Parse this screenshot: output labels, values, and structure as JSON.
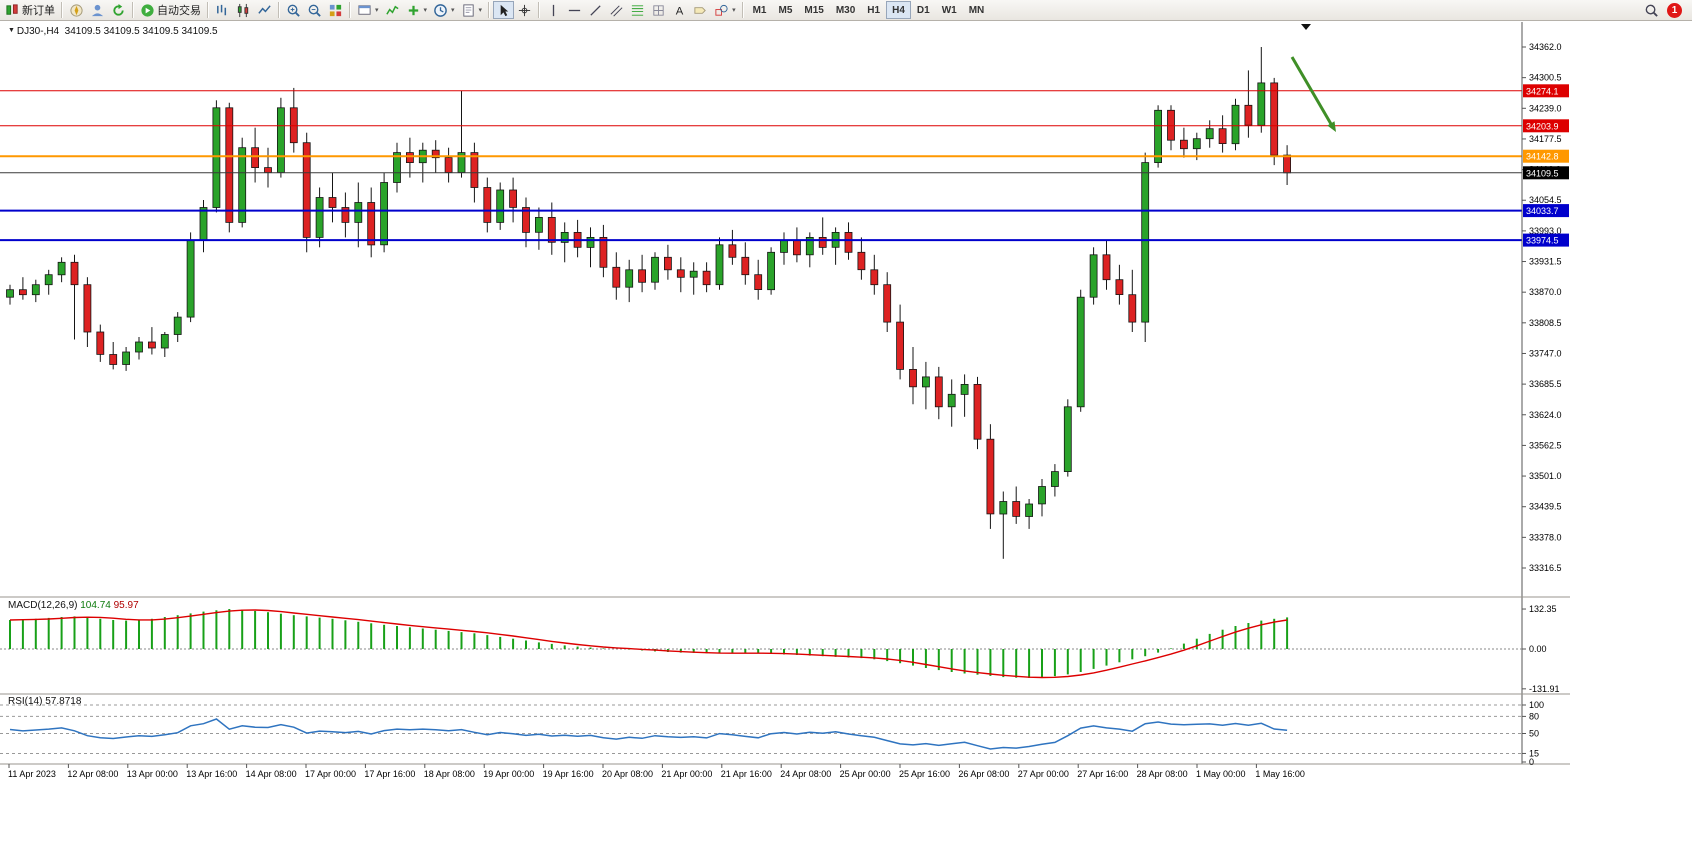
{
  "toolbar": {
    "buttons": [
      {
        "name": "new-order-button",
        "icon": "order-icon",
        "label": "新订单",
        "group_end": true
      },
      {
        "name": "marketwatch-button",
        "icon": "compass-icon"
      },
      {
        "name": "data-window-button",
        "icon": "user-icon"
      },
      {
        "name": "refresh-button",
        "icon": "refresh-icon",
        "group_end": true
      },
      {
        "name": "auto-trading-button",
        "icon": "play-icon",
        "label": "自动交易",
        "group_end": true
      },
      {
        "name": "bar-chart-button",
        "icon": "bar-chart-icon"
      },
      {
        "name": "candlestick-button",
        "icon": "candlestick-icon"
      },
      {
        "name": "line-chart-button",
        "icon": "line-chart-icon",
        "group_end": true
      },
      {
        "name": "zoom-in-button",
        "icon": "zoom-in-icon"
      },
      {
        "name": "zoom-out-button",
        "icon": "zoom-out-icon"
      },
      {
        "name": "tile-windows-button",
        "icon": "tile-windows-icon",
        "group_end": true
      },
      {
        "name": "arrange-charts-button",
        "icon": "arrange-icon",
        "dropdown": true
      },
      {
        "name": "indicators-button",
        "icon": "indicators-icon"
      },
      {
        "name": "add-indicator-button",
        "icon": "plus-icon",
        "dropdown": true
      },
      {
        "name": "periods-button",
        "icon": "clock-icon",
        "dropdown": true
      },
      {
        "name": "templates-button",
        "icon": "template-icon",
        "dropdown": true,
        "group_end": true
      },
      {
        "name": "cursor-button",
        "icon": "cursor-icon",
        "active": true
      },
      {
        "name": "crosshair-button",
        "icon": "crosshair-icon",
        "group_end": true
      },
      {
        "name": "vertical-line-button",
        "icon": "vline-icon"
      },
      {
        "name": "horizontal-line-button",
        "icon": "hline-icon"
      },
      {
        "name": "trendline-button",
        "icon": "trendline-icon"
      },
      {
        "name": "channel-button",
        "icon": "channel-icon"
      },
      {
        "name": "fibonacci-button",
        "icon": "fibo-icon"
      },
      {
        "name": "grid-button",
        "icon": "grid-icon"
      },
      {
        "name": "text-button",
        "icon": "text-icon"
      },
      {
        "name": "label-button",
        "icon": "label-icon"
      },
      {
        "name": "shapes-button",
        "icon": "shapes-icon",
        "dropdown": true,
        "group_end": true
      }
    ],
    "timeframes": [
      {
        "label": "M1"
      },
      {
        "label": "M5"
      },
      {
        "label": "M15"
      },
      {
        "label": "M30"
      },
      {
        "label": "H1"
      },
      {
        "label": "H4",
        "active": true
      },
      {
        "label": "D1"
      },
      {
        "label": "W1"
      },
      {
        "label": "MN"
      }
    ],
    "notification": {
      "count": "1"
    }
  },
  "chart": {
    "symbol": "DJ30-",
    "period": "H4",
    "title": "DJ30-,H4  34109.5 34109.5 34109.5 34109.5"
  },
  "chart_data": {
    "type": "candlestick",
    "symbol": "DJ30-",
    "timeframe": "H4",
    "ohlc_display": "34109.5 34109.5 34109.5 34109.5",
    "price_axis_range": {
      "top": 34362.0,
      "bottom": 33316.5
    },
    "price_axis_labels": [
      "34362.0",
      "34300.5",
      "34239.0",
      "34177.5",
      "34116.0",
      "34054.5",
      "33993.0",
      "33931.5",
      "33870.0",
      "33808.5",
      "33747.0",
      "33685.5",
      "33624.0",
      "33562.5",
      "33501.0",
      "33439.5",
      "33378.0",
      "33316.5"
    ],
    "time_labels": [
      "11 Apr 2023",
      "12 Apr 08:00",
      "13 Apr 00:00",
      "13 Apr 16:00",
      "14 Apr 08:00",
      "17 Apr 00:00",
      "17 Apr 16:00",
      "18 Apr 08:00",
      "19 Apr 00:00",
      "19 Apr 16:00",
      "20 Apr 08:00",
      "21 Apr 00:00",
      "21 Apr 16:00",
      "24 Apr 08:00",
      "25 Apr 00:00",
      "25 Apr 16:00",
      "26 Apr 08:00",
      "27 Apr 00:00",
      "27 Apr 16:00",
      "28 Apr 08:00",
      "1 May 00:00",
      "1 May 16:00"
    ],
    "levels": [
      {
        "price": 34274.1,
        "label": "34274.1",
        "color": "#dd0000",
        "width": 1
      },
      {
        "price": 34203.9,
        "label": "34203.9",
        "color": "#dd0000",
        "width": 1
      },
      {
        "price": 34142.8,
        "label": "34142.8",
        "color": "#ff9800",
        "width": 2
      },
      {
        "price": 34109.5,
        "label": "34109.5",
        "color": "#3a3a3a",
        "width": 1,
        "tag": "#000000"
      },
      {
        "price": 34033.7,
        "label": "34033.7",
        "color": "#0000cc",
        "width": 2
      },
      {
        "price": 33974.5,
        "label": "33974.5",
        "color": "#0000cc",
        "width": 2
      }
    ],
    "candles": [
      [
        33860,
        33885,
        33845,
        33875
      ],
      [
        33875,
        33900,
        33855,
        33865
      ],
      [
        33865,
        33895,
        33850,
        33885
      ],
      [
        33885,
        33915,
        33865,
        33905
      ],
      [
        33905,
        33940,
        33890,
        33930
      ],
      [
        33930,
        33945,
        33775,
        33885
      ],
      [
        33885,
        33900,
        33760,
        33790
      ],
      [
        33790,
        33805,
        33730,
        33745
      ],
      [
        33745,
        33770,
        33715,
        33725
      ],
      [
        33725,
        33760,
        33712,
        33750
      ],
      [
        33750,
        33780,
        33735,
        33770
      ],
      [
        33770,
        33800,
        33745,
        33758
      ],
      [
        33758,
        33790,
        33740,
        33785
      ],
      [
        33785,
        33830,
        33770,
        33820
      ],
      [
        33820,
        33990,
        33810,
        33975
      ],
      [
        33975,
        34055,
        33950,
        34040
      ],
      [
        34040,
        34255,
        34030,
        34240
      ],
      [
        34240,
        34250,
        33990,
        34010
      ],
      [
        34010,
        34180,
        34000,
        34160
      ],
      [
        34160,
        34200,
        34090,
        34120
      ],
      [
        34120,
        34160,
        34080,
        34110
      ],
      [
        34110,
        34260,
        34100,
        34240
      ],
      [
        34240,
        34280,
        34150,
        34170
      ],
      [
        34170,
        34190,
        33950,
        33980
      ],
      [
        33980,
        34080,
        33960,
        34060
      ],
      [
        34060,
        34110,
        34010,
        34040
      ],
      [
        34040,
        34070,
        33980,
        34010
      ],
      [
        34010,
        34090,
        33960,
        34050
      ],
      [
        34050,
        34080,
        33940,
        33965
      ],
      [
        33965,
        34110,
        33950,
        34090
      ],
      [
        34090,
        34170,
        34070,
        34150
      ],
      [
        34150,
        34180,
        34100,
        34130
      ],
      [
        34130,
        34170,
        34090,
        34155
      ],
      [
        34155,
        34175,
        34110,
        34140
      ],
      [
        34140,
        34160,
        34090,
        34110
      ],
      [
        34110,
        34274,
        34100,
        34150
      ],
      [
        34150,
        34170,
        34050,
        34080
      ],
      [
        34080,
        34100,
        33990,
        34010
      ],
      [
        34010,
        34090,
        33995,
        34075
      ],
      [
        34075,
        34100,
        34010,
        34040
      ],
      [
        34040,
        34060,
        33960,
        33990
      ],
      [
        33990,
        34040,
        33955,
        34020
      ],
      [
        34020,
        34050,
        33945,
        33970
      ],
      [
        33970,
        34010,
        33930,
        33990
      ],
      [
        33990,
        34015,
        33940,
        33960
      ],
      [
        33960,
        34000,
        33920,
        33980
      ],
      [
        33980,
        34005,
        33900,
        33920
      ],
      [
        33920,
        33950,
        33855,
        33880
      ],
      [
        33880,
        33935,
        33850,
        33915
      ],
      [
        33915,
        33945,
        33870,
        33890
      ],
      [
        33890,
        33950,
        33875,
        33940
      ],
      [
        33940,
        33965,
        33895,
        33915
      ],
      [
        33915,
        33940,
        33870,
        33900
      ],
      [
        33900,
        33930,
        33865,
        33912
      ],
      [
        33912,
        33930,
        33870,
        33885
      ],
      [
        33885,
        33980,
        33875,
        33965
      ],
      [
        33965,
        33995,
        33925,
        33940
      ],
      [
        33940,
        33970,
        33885,
        33905
      ],
      [
        33905,
        33935,
        33855,
        33875
      ],
      [
        33875,
        33960,
        33865,
        33950
      ],
      [
        33950,
        33990,
        33925,
        33975
      ],
      [
        33975,
        34000,
        33930,
        33945
      ],
      [
        33945,
        33990,
        33920,
        33980
      ],
      [
        33980,
        34020,
        33945,
        33960
      ],
      [
        33960,
        34000,
        33925,
        33990
      ],
      [
        33990,
        34010,
        33935,
        33950
      ],
      [
        33950,
        33980,
        33895,
        33915
      ],
      [
        33915,
        33945,
        33865,
        33885
      ],
      [
        33885,
        33910,
        33790,
        33810
      ],
      [
        33810,
        33845,
        33695,
        33715
      ],
      [
        33715,
        33760,
        33645,
        33680
      ],
      [
        33680,
        33730,
        33635,
        33700
      ],
      [
        33700,
        33720,
        33615,
        33640
      ],
      [
        33640,
        33695,
        33600,
        33665
      ],
      [
        33665,
        33705,
        33620,
        33685
      ],
      [
        33685,
        33700,
        33555,
        33575
      ],
      [
        33575,
        33605,
        33395,
        33425
      ],
      [
        33425,
        33470,
        33335,
        33450
      ],
      [
        33450,
        33480,
        33405,
        33420
      ],
      [
        33420,
        33455,
        33395,
        33445
      ],
      [
        33445,
        33495,
        33420,
        33480
      ],
      [
        33480,
        33525,
        33460,
        33510
      ],
      [
        33510,
        33655,
        33500,
        33640
      ],
      [
        33640,
        33875,
        33630,
        33860
      ],
      [
        33860,
        33960,
        33845,
        33945
      ],
      [
        33945,
        33975,
        33875,
        33895
      ],
      [
        33895,
        33925,
        33845,
        33865
      ],
      [
        33865,
        33915,
        33790,
        33810
      ],
      [
        33810,
        34150,
        33770,
        34130
      ],
      [
        34130,
        34245,
        34120,
        34235
      ],
      [
        34235,
        34245,
        34155,
        34175
      ],
      [
        34175,
        34200,
        34140,
        34158
      ],
      [
        34158,
        34190,
        34135,
        34178
      ],
      [
        34178,
        34215,
        34160,
        34198
      ],
      [
        34198,
        34225,
        34150,
        34168
      ],
      [
        34168,
        34258,
        34155,
        34245
      ],
      [
        34245,
        34315,
        34180,
        34205
      ],
      [
        34205,
        34362,
        34190,
        34290
      ],
      [
        34290,
        34300,
        34125,
        34145
      ],
      [
        34145,
        34165,
        34085,
        34109.5
      ]
    ],
    "macd": {
      "label": "MACD(12,26,9)",
      "main_value": "104.74",
      "signal_value": "95.97",
      "axis_labels": [
        "132.35",
        "0.00",
        "-131.91"
      ],
      "histogram": [
        96,
        98,
        100,
        103,
        106,
        108,
        104,
        100,
        96,
        94,
        96,
        100,
        106,
        112,
        118,
        124,
        128,
        132.35,
        130,
        126,
        122,
        117,
        112,
        108,
        104,
        100,
        95,
        90,
        85,
        80,
        76,
        72,
        68,
        64,
        60,
        56,
        52,
        46,
        40,
        34,
        28,
        22,
        17,
        12,
        8,
        5,
        2,
        0,
        -2,
        -5,
        -8,
        -10,
        -12,
        -13,
        -14,
        -15,
        -14,
        -13,
        -14,
        -16,
        -18,
        -20,
        -22,
        -24,
        -26,
        -28,
        -30,
        -34,
        -40,
        -47,
        -55,
        -63,
        -70,
        -76,
        -81,
        -85,
        -89,
        -93,
        -95,
        -96,
        -94,
        -90,
        -84,
        -76,
        -66,
        -55,
        -44,
        -34,
        -24,
        -12,
        2,
        18,
        34,
        50,
        64,
        76,
        86,
        94,
        100,
        104.74
      ]
    },
    "rsi": {
      "label": "RSI(14)",
      "value": "57.8718",
      "axis_labels": [
        "100",
        "80",
        "50",
        "15",
        "0"
      ],
      "levels": [
        100,
        80,
        50,
        15
      ]
    },
    "colors": {
      "up": "#2aa32a",
      "down": "#dd2222",
      "wick": "#151515",
      "macd_hist": "#18a018",
      "macd_signal": "#dd0000",
      "rsi": "#2f74c0",
      "arrow": "#3f8f27"
    }
  }
}
